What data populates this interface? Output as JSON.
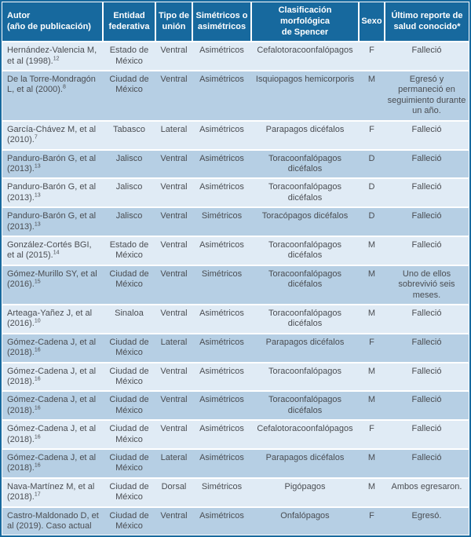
{
  "colors": {
    "header_bg": "#17699e",
    "row_light": "#e0ebf5",
    "row_dark": "#b6cfe4",
    "header_text": "#ffffff",
    "body_text": "#4a4d52"
  },
  "table": {
    "columns": [
      "Autor\n(año de publicación)",
      "Entidad\nfederativa",
      "Tipo de\nunión",
      "Simétricos o\nasimétricos",
      "Clasificación morfológica\nde Spencer",
      "Sexo",
      "Último reporte de\nsalud conocido*"
    ],
    "rows": [
      {
        "author": "Hernández-Valencia M, et al (1998).",
        "ref": "12",
        "entidad": "Estado de México",
        "tipo": "Ventral",
        "simetria": "Asimétricos",
        "spencer": "Cefalotoracoonfalópagos",
        "sexo": "F",
        "reporte": "Falleció"
      },
      {
        "author": "De la Torre-Mondragón L, et al (2000).",
        "ref": "8",
        "entidad": "Ciudad de México",
        "tipo": "Ventral",
        "simetria": "Asimétricos",
        "spencer": "Isquiopagos hemicorporis",
        "sexo": "M",
        "reporte": "Egresó y permaneció en seguimiento durante un año."
      },
      {
        "author": "García-Chávez M, et al (2010).",
        "ref": "7",
        "entidad": "Tabasco",
        "tipo": "Lateral",
        "simetria": "Asimétricos",
        "spencer": "Parapagos dicéfalos",
        "sexo": "F",
        "reporte": "Falleció"
      },
      {
        "author": "Panduro-Barón G, et al (2013).",
        "ref": "13",
        "entidad": "Jalisco",
        "tipo": "Ventral",
        "simetria": "Asimétricos",
        "spencer": "Toracoonfalópagos dicéfalos",
        "sexo": "D",
        "reporte": "Falleció"
      },
      {
        "author": "Panduro-Barón G, et al (2013).",
        "ref": "13",
        "entidad": "Jalisco",
        "tipo": "Ventral",
        "simetria": "Asimétricos",
        "spencer": "Toracoonfalópagos dicéfalos",
        "sexo": "D",
        "reporte": "Falleció"
      },
      {
        "author": "Panduro-Barón G, et al (2013).",
        "ref": "13",
        "entidad": "Jalisco",
        "tipo": "Ventral",
        "simetria": "Simétricos",
        "spencer": "Toracópagos dicéfalos",
        "sexo": "D",
        "reporte": "Falleció"
      },
      {
        "author": "González-Cortés BGI, et al (2015).",
        "ref": "14",
        "entidad": "Estado de México",
        "tipo": "Ventral",
        "simetria": "Asimétricos",
        "spencer": "Toracoonfalópagos dicéfalos",
        "sexo": "M",
        "reporte": "Falleció"
      },
      {
        "author": "Gómez-Murillo SY, et al (2016).",
        "ref": "15",
        "entidad": "Ciudad de México",
        "tipo": "Ventral",
        "simetria": "Simétricos",
        "spencer": "Toracoonfalópagos dicéfalos",
        "sexo": "M",
        "reporte": "Uno de ellos sobrevivió seis meses."
      },
      {
        "author": "Arteaga-Yañez J, et al (2016).",
        "ref": "10",
        "entidad": "Sinaloa",
        "tipo": "Ventral",
        "simetria": "Asimétricos",
        "spencer": "Toracoonfalópagos dicéfalos",
        "sexo": "M",
        "reporte": "Falleció"
      },
      {
        "author": "Gómez-Cadena J, et al (2018).",
        "ref": "16",
        "entidad": "Ciudad de México",
        "tipo": "Lateral",
        "simetria": "Asimétricos",
        "spencer": "Parapagos dicéfalos",
        "sexo": "F",
        "reporte": "Falleció"
      },
      {
        "author": "Gómez-Cadena J, et al (2018).",
        "ref": "16",
        "entidad": "Ciudad de México",
        "tipo": "Ventral",
        "simetria": "Asimétricos",
        "spencer": "Toracoonfalópagos",
        "sexo": "M",
        "reporte": "Falleció"
      },
      {
        "author": "Gómez-Cadena J, et al (2018).",
        "ref": "16",
        "entidad": "Ciudad de México",
        "tipo": "Ventral",
        "simetria": "Asimétricos",
        "spencer": "Toracoonfalópagos dicéfalos",
        "sexo": "M",
        "reporte": "Falleció"
      },
      {
        "author": "Gómez-Cadena J, et al (2018).",
        "ref": "16",
        "entidad": "Ciudad de México",
        "tipo": "Ventral",
        "simetria": "Asimétricos",
        "spencer": "Cefalotoracoonfalópagos",
        "sexo": "F",
        "reporte": "Falleció"
      },
      {
        "author": "Gómez-Cadena J, et al (2018).",
        "ref": "16",
        "entidad": "Ciudad de México",
        "tipo": "Lateral",
        "simetria": "Asimétricos",
        "spencer": "Parapagos dicéfalos",
        "sexo": "M",
        "reporte": "Falleció"
      },
      {
        "author": "Nava-Martínez M, et al (2018).",
        "ref": "17",
        "entidad": "Ciudad de México",
        "tipo": "Dorsal",
        "simetria": "Simétricos",
        "spencer": "Pigópagos",
        "sexo": "M",
        "reporte": "Ambos egresaron."
      },
      {
        "author": "Castro-Maldonado D, et al (2019). Caso actual",
        "ref": "",
        "entidad": "Ciudad de México",
        "tipo": "Ventral",
        "simetria": "Asimétricos",
        "spencer": "Onfalópagos",
        "sexo": "F",
        "reporte": "Egresó."
      }
    ]
  }
}
